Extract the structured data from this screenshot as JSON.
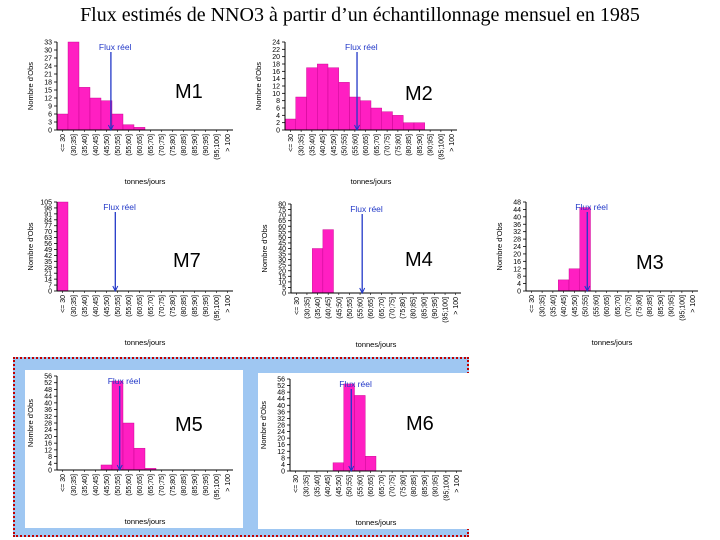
{
  "title": "Flux estimés de NNO3 à partir d’un échantillonnage mensuel en 1985",
  "chart_data": {
    "type": "bar",
    "categories": [
      "<= 30",
      "(30;35]",
      "(35;40]",
      "(40;45]",
      "(45;50]",
      "(50;55]",
      "(55;60]",
      "(60;65]",
      "(65;70]",
      "(70;75]",
      "(75;80]",
      "(80;85]",
      "(85;90]",
      "(90;95]",
      "(95;100]",
      "> 100"
    ],
    "xlabel": "tonnes/jours",
    "ylabel": "Nombre d'Obs",
    "ref_line_label": "Flux réel",
    "panels": [
      {
        "label": "M1",
        "yticks": [
          "33",
          "30",
          "27",
          "24",
          "21",
          "18",
          "15",
          "12",
          "9",
          "6",
          "3",
          "0"
        ],
        "ymax": 33,
        "values": [
          6,
          33,
          16,
          12,
          11,
          6,
          2,
          1,
          0,
          0,
          0,
          0,
          0,
          0,
          0,
          0
        ],
        "ref_value": 52
      },
      {
        "label": "M2",
        "yticks": [
          "24",
          "22",
          "20",
          "18",
          "16",
          "14",
          "12",
          "10",
          "8",
          "6",
          "4",
          "2",
          "0"
        ],
        "ymax": 24,
        "values": [
          3,
          9,
          17,
          18,
          17,
          13,
          9,
          8,
          6,
          5,
          4,
          2,
          2,
          0,
          0,
          0
        ],
        "ref_value": 61
      },
      {
        "label": "M7",
        "yticks": [
          "105",
          "98",
          "91",
          "84",
          "77",
          "70",
          "63",
          "56",
          "49",
          "42",
          "35",
          "28",
          "21",
          "14",
          "7",
          "0"
        ],
        "ymax": 105,
        "values": [
          105,
          0,
          0,
          0,
          0,
          0,
          0,
          0,
          0,
          0,
          0,
          0,
          0,
          0,
          0,
          0
        ],
        "ref_value": 54
      },
      {
        "label": "M4",
        "yticks": [
          "80",
          "75",
          "70",
          "65",
          "60",
          "55",
          "50",
          "45",
          "40",
          "35",
          "30",
          "25",
          "20",
          "15",
          "10",
          "5",
          "0"
        ],
        "ymax": 80,
        "values": [
          0,
          0,
          40,
          57,
          0,
          0,
          0,
          0,
          0,
          0,
          0,
          0,
          0,
          0,
          0,
          0
        ],
        "ref_value": 61
      },
      {
        "label": "M3",
        "yticks": [
          "48",
          "44",
          "40",
          "36",
          "32",
          "28",
          "24",
          "20",
          "16",
          "12",
          "8",
          "4",
          "0"
        ],
        "ymax": 48,
        "values": [
          0,
          0,
          0,
          6,
          12,
          45,
          0,
          0,
          0,
          0,
          0,
          0,
          0,
          0,
          0,
          0
        ],
        "ref_value": 56
      },
      {
        "label": "M5",
        "yticks": [
          "56",
          "52",
          "48",
          "44",
          "40",
          "36",
          "32",
          "28",
          "24",
          "20",
          "16",
          "12",
          "8",
          "4",
          "0"
        ],
        "ymax": 56,
        "values": [
          0,
          0,
          0,
          0,
          3,
          53,
          28,
          13,
          1,
          0,
          0,
          0,
          0,
          0,
          0,
          0
        ],
        "ref_value": 56
      },
      {
        "label": "M6",
        "yticks": [
          "56",
          "52",
          "48",
          "44",
          "40",
          "36",
          "32",
          "28",
          "24",
          "20",
          "16",
          "12",
          "8",
          "4",
          "0"
        ],
        "ymax": 56,
        "values": [
          0,
          0,
          0,
          0,
          5,
          53,
          46,
          9,
          0,
          0,
          0,
          0,
          0,
          0,
          0,
          0
        ],
        "ref_value": 56
      }
    ]
  },
  "colors": {
    "bar": "#ff1fc2",
    "ref_line": "#2238c8",
    "panel_bg": "#ffffff"
  }
}
